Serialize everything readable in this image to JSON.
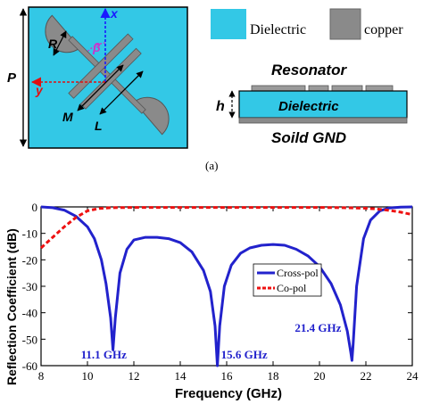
{
  "unit_cell": {
    "labels": {
      "R": "R",
      "beta": "β",
      "x": "x",
      "y": "y",
      "M": "M",
      "L": "L",
      "P": "P"
    },
    "colors": {
      "dielectric": "#33c8e6",
      "copper": "#8a8a8a"
    }
  },
  "legend_materials": {
    "dielectric": "Dielectric",
    "copper": "copper"
  },
  "side_view": {
    "resonator": "Resonator",
    "dielectric": "Dielectric",
    "gnd": "Soild GND",
    "h": "h"
  },
  "caption_a": "(a)",
  "chart_data": {
    "type": "line",
    "xlabel": "Frequency (GHz)",
    "ylabel": "Reflection Coefficient (dB)",
    "xlim": [
      8,
      24
    ],
    "ylim": [
      -60,
      0
    ],
    "xticks": [
      8,
      10,
      12,
      14,
      16,
      18,
      20,
      22,
      24
    ],
    "yticks": [
      0,
      -10,
      -20,
      -30,
      -40,
      -50,
      -60
    ],
    "grid": false,
    "legend_placement": "center-right",
    "series": [
      {
        "name": "Cross-pol",
        "color": "#2222cc",
        "style": "solid",
        "x": [
          8,
          8.5,
          9,
          9.5,
          10,
          10.3,
          10.6,
          10.8,
          11.0,
          11.1,
          11.2,
          11.4,
          11.7,
          12.0,
          12.5,
          13.0,
          13.5,
          14.0,
          14.5,
          15.0,
          15.3,
          15.5,
          15.6,
          15.7,
          15.9,
          16.2,
          16.6,
          17.0,
          17.5,
          18.0,
          18.5,
          19.0,
          19.5,
          20.0,
          20.5,
          20.9,
          21.2,
          21.35,
          21.4,
          21.45,
          21.6,
          21.9,
          22.2,
          22.6,
          23.0,
          23.5,
          24
        ],
        "y": [
          0,
          -0.3,
          -1.2,
          -3.5,
          -7.5,
          -12,
          -20,
          -29,
          -42,
          -54,
          -42,
          -25,
          -16,
          -12.5,
          -11.5,
          -11.5,
          -12,
          -13.5,
          -17,
          -24,
          -32,
          -45,
          -60,
          -45,
          -30,
          -22,
          -17.5,
          -15.5,
          -14.5,
          -14.2,
          -14.5,
          -16,
          -18.5,
          -22.5,
          -29,
          -37,
          -47,
          -55,
          -58,
          -52,
          -30,
          -12,
          -5,
          -1.5,
          -0.4,
          -0.1,
          0
        ]
      },
      {
        "name": "Co-pol",
        "color": "#ee1111",
        "style": "dashed",
        "x": [
          8,
          8.5,
          9,
          9.5,
          10,
          10.5,
          11,
          12,
          14,
          16,
          18,
          20,
          21,
          22,
          22.5,
          23,
          23.5,
          24
        ],
        "y": [
          -15.5,
          -11.5,
          -7.5,
          -4,
          -1.5,
          -0.6,
          -0.3,
          -0.2,
          -0.2,
          -0.2,
          -0.2,
          -0.2,
          -0.3,
          -0.5,
          -0.8,
          -1.3,
          -2,
          -2.9
        ]
      }
    ],
    "annotations": [
      {
        "text": "11.1 GHz",
        "x": 11.1
      },
      {
        "text": "15.6 GHz",
        "x": 15.6
      },
      {
        "text": "21.4 GHz",
        "x": 21.4
      }
    ]
  }
}
